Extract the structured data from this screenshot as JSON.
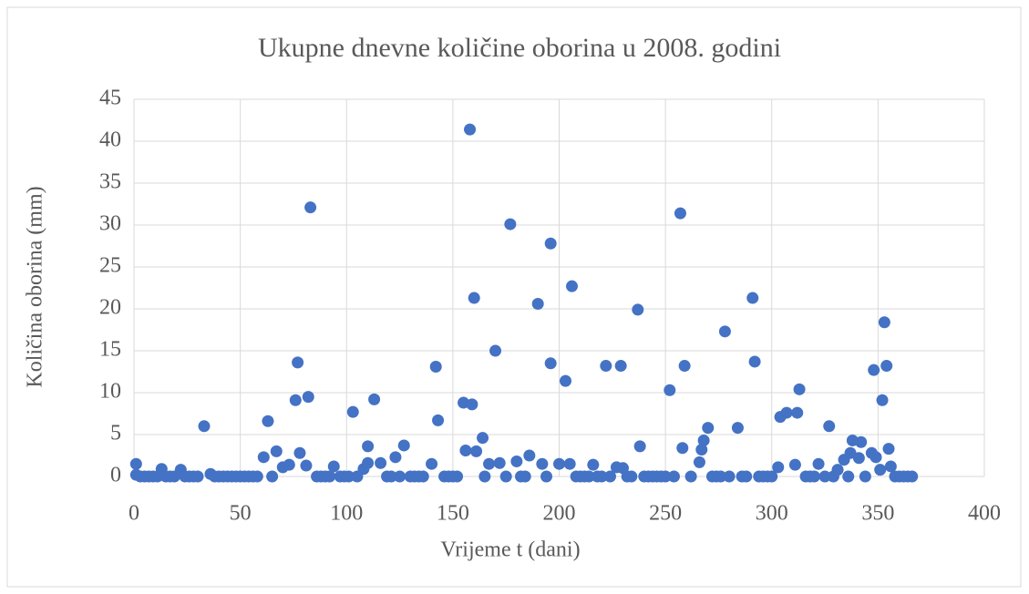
{
  "chart_data": {
    "type": "scatter",
    "title": "Ukupne dnevne količine oborina u 2008. godini",
    "x_label": "Vrijeme t (dani)",
    "y_label": "Količina oborina (mm)",
    "color": "#4472c4",
    "grid": true,
    "xlim": [
      0,
      400
    ],
    "xticks": [
      0,
      50,
      100,
      150,
      200,
      250,
      300,
      350,
      400
    ],
    "ylim": [
      0,
      45
    ],
    "yticks": [
      0,
      5,
      10,
      15,
      20,
      25,
      30,
      35,
      40,
      45
    ],
    "x": [
      1,
      1,
      13,
      22,
      33,
      36,
      61,
      63,
      67,
      70,
      73,
      76,
      77,
      78,
      81,
      82,
      83,
      94,
      103,
      108,
      110,
      110,
      113,
      116,
      123,
      127,
      140,
      142,
      143,
      155,
      156,
      158,
      159,
      160,
      161,
      164,
      167,
      170,
      172,
      177,
      180,
      186,
      190,
      192,
      196,
      196,
      200,
      203,
      205,
      206,
      216,
      222,
      227,
      229,
      230,
      237,
      238,
      252,
      257,
      258,
      259,
      266,
      267,
      268,
      270,
      278,
      284,
      291,
      292,
      303,
      304,
      307,
      311,
      312,
      313,
      322,
      327,
      331,
      334,
      337,
      338,
      341,
      342,
      347,
      348,
      349,
      351,
      352,
      353,
      354,
      355,
      356,
      3,
      5,
      7,
      9,
      11,
      15,
      17,
      19,
      24,
      26,
      28,
      30,
      38,
      40,
      42,
      44,
      46,
      48,
      50,
      52,
      54,
      56,
      58,
      65,
      86,
      88,
      90,
      92,
      97,
      99,
      101,
      105,
      119,
      121,
      125,
      130,
      132,
      134,
      136,
      146,
      148,
      150,
      152,
      165,
      175,
      182,
      184,
      194,
      208,
      210,
      212,
      214,
      218,
      220,
      224,
      232,
      234,
      240,
      242,
      244,
      246,
      248,
      250,
      254,
      262,
      272,
      274,
      276,
      280,
      286,
      288,
      294,
      296,
      298,
      300,
      316,
      318,
      320,
      325,
      329,
      336,
      344,
      358,
      360,
      362,
      364,
      366
    ],
    "values": [
      1.5,
      0.2,
      0.9,
      0.8,
      6.0,
      0.3,
      2.3,
      6.6,
      3.0,
      1.1,
      1.4,
      9.1,
      13.6,
      2.8,
      1.3,
      9.5,
      32.1,
      1.2,
      7.7,
      0.9,
      3.6,
      1.6,
      9.2,
      1.6,
      2.3,
      3.7,
      1.5,
      13.1,
      6.7,
      8.8,
      3.1,
      41.4,
      8.6,
      21.3,
      3.0,
      4.6,
      1.5,
      15.0,
      1.6,
      30.1,
      1.8,
      2.5,
      20.6,
      1.5,
      27.8,
      13.5,
      1.5,
      11.4,
      1.5,
      22.7,
      1.4,
      13.2,
      1.1,
      13.2,
      1.0,
      19.9,
      3.6,
      10.3,
      31.4,
      3.4,
      13.2,
      1.7,
      3.2,
      4.3,
      5.8,
      17.3,
      5.8,
      21.3,
      13.7,
      1.1,
      7.1,
      7.6,
      1.4,
      7.6,
      10.4,
      1.5,
      6.0,
      0.8,
      2.0,
      2.8,
      4.3,
      2.2,
      4.1,
      2.8,
      12.7,
      2.3,
      0.8,
      9.1,
      18.4,
      13.2,
      3.3,
      1.2,
      0,
      0,
      0,
      0,
      0,
      0,
      0,
      0,
      0,
      0,
      0,
      0,
      0,
      0,
      0,
      0,
      0,
      0,
      0,
      0,
      0,
      0,
      0,
      0,
      0,
      0,
      0,
      0,
      0,
      0,
      0,
      0,
      0,
      0,
      0,
      0,
      0,
      0,
      0,
      0,
      0,
      0,
      0,
      0,
      0,
      0,
      0,
      0,
      0,
      0,
      0,
      0,
      0,
      0,
      0,
      0,
      0,
      0,
      0,
      0,
      0,
      0,
      0,
      0,
      0,
      0,
      0,
      0,
      0,
      0,
      0,
      0,
      0,
      0,
      0,
      0,
      0,
      0,
      0,
      0,
      0,
      0,
      0,
      0,
      0,
      0,
      0
    ]
  }
}
